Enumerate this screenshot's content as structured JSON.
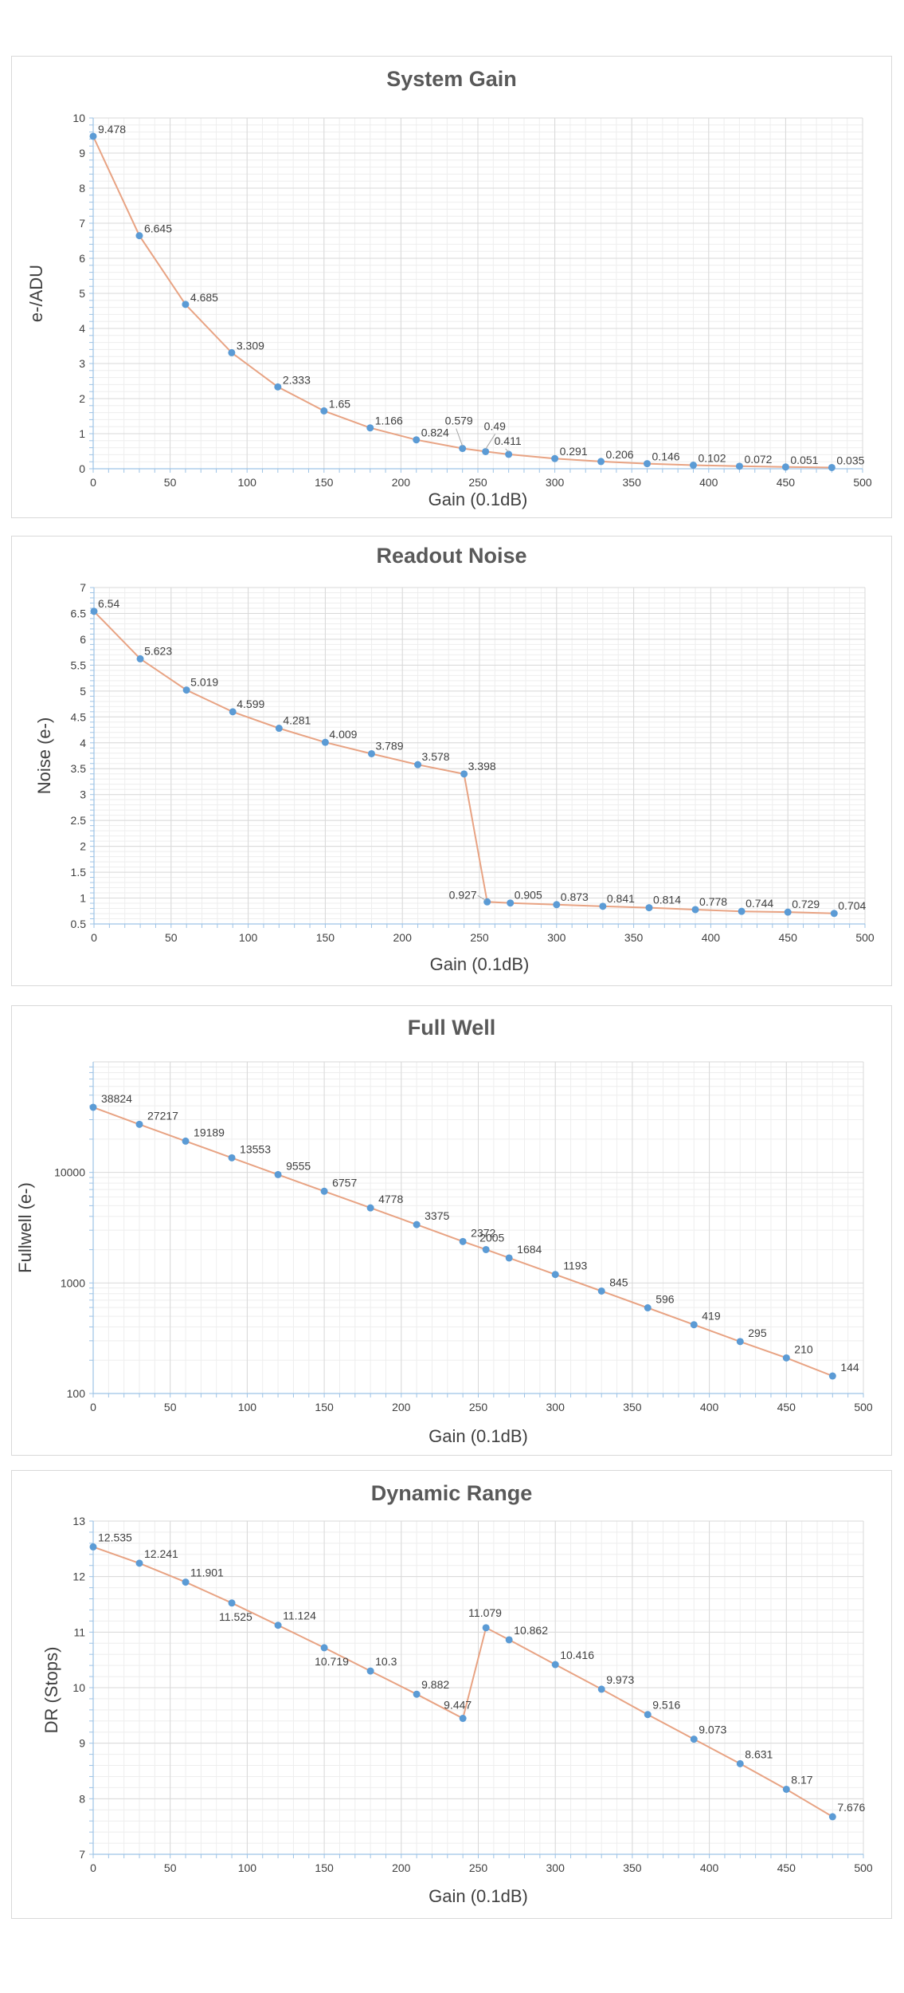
{
  "chart_data": [
    {
      "type": "line",
      "title": "System Gain",
      "xlabel": "Gain (0.1dB)",
      "ylabel": "e-/ADU",
      "xlim": [
        0,
        500
      ],
      "ylim": [
        0,
        10
      ],
      "yscale": "linear",
      "xticks": [
        0,
        50,
        100,
        150,
        200,
        250,
        300,
        350,
        400,
        450,
        500
      ],
      "yticks": [
        0,
        1,
        2,
        3,
        4,
        5,
        6,
        7,
        8,
        9,
        10
      ],
      "ytick_labels": [
        "0",
        "1",
        "2",
        "3",
        "4",
        "5",
        "6",
        "7",
        "8",
        "9",
        "10"
      ],
      "grid": true,
      "legend": "none",
      "series": [
        {
          "x": [
            0,
            30,
            60,
            90,
            120,
            150,
            180,
            210,
            240,
            255,
            270,
            300,
            330,
            360,
            390,
            420,
            450,
            480
          ],
          "y": [
            9.478,
            6.645,
            4.685,
            3.309,
            2.333,
            1.65,
            1.166,
            0.824,
            0.579,
            0.49,
            0.411,
            0.291,
            0.206,
            0.146,
            0.102,
            0.072,
            0.051,
            0.035
          ],
          "labels": [
            "9.478",
            "6.645",
            "4.685",
            "3.309",
            "2.333",
            "1.65",
            "1.166",
            "0.824",
            "0.579",
            "0.49",
            "0.411",
            "0.291",
            "0.206",
            "0.146",
            "0.102",
            "0.072",
            "0.051",
            "0.035"
          ]
        }
      ]
    },
    {
      "type": "line",
      "title": "Readout Noise",
      "xlabel": "Gain (0.1dB)",
      "ylabel": "Noise (e-)",
      "xlim": [
        0,
        500
      ],
      "ylim": [
        0.5,
        7
      ],
      "yscale": "linear",
      "xticks": [
        0,
        50,
        100,
        150,
        200,
        250,
        300,
        350,
        400,
        450,
        500
      ],
      "yticks": [
        0.5,
        1,
        1.5,
        2,
        2.5,
        3,
        3.5,
        4,
        4.5,
        5,
        5.5,
        6,
        6.5,
        7
      ],
      "ytick_labels": [
        "0.5",
        "1",
        "1.5",
        "2",
        "2.5",
        "3",
        "3.5",
        "4",
        "4.5",
        "5",
        "5.5",
        "6",
        "6.5",
        "7"
      ],
      "grid": true,
      "legend": "none",
      "series": [
        {
          "x": [
            0,
            30,
            60,
            90,
            120,
            150,
            180,
            210,
            240,
            255,
            270,
            300,
            330,
            360,
            390,
            420,
            450,
            480
          ],
          "y": [
            6.54,
            5.623,
            5.019,
            4.599,
            4.281,
            4.009,
            3.789,
            3.578,
            3.398,
            0.927,
            0.905,
            0.873,
            0.841,
            0.814,
            0.778,
            0.744,
            0.729,
            0.704
          ],
          "labels": [
            "6.54",
            "5.623",
            "5.019",
            "4.599",
            "4.281",
            "4.009",
            "3.789",
            "3.578",
            "3.398",
            "0.927",
            "0.905",
            "0.873",
            "0.841",
            "0.814",
            "0.778",
            "0.744",
            "0.729",
            "0.704"
          ]
        }
      ]
    },
    {
      "type": "line",
      "title": "Full Well",
      "xlabel": "Gain (0.1dB)",
      "ylabel": "Fullwell (e-)",
      "xlim": [
        0,
        500
      ],
      "ylim": [
        100,
        100000
      ],
      "yscale": "log",
      "xticks": [
        0,
        50,
        100,
        150,
        200,
        250,
        300,
        350,
        400,
        450,
        500
      ],
      "yticks": [
        100,
        1000,
        10000
      ],
      "ytick_labels": [
        "100",
        "1000",
        "10000"
      ],
      "grid": true,
      "legend": "none",
      "series": [
        {
          "x": [
            0,
            30,
            60,
            90,
            120,
            150,
            180,
            210,
            240,
            255,
            270,
            300,
            330,
            360,
            390,
            420,
            450,
            480
          ],
          "y": [
            38824,
            27217,
            19189,
            13553,
            9555,
            6757,
            4778,
            3375,
            2372,
            2005,
            1684,
            1193,
            845,
            596,
            419,
            295,
            210,
            144
          ],
          "labels": [
            "38824",
            "27217",
            "19189",
            "13553",
            "9555",
            "6757",
            "4778",
            "3375",
            "2372",
            "2005",
            "1684",
            "1193",
            "845",
            "596",
            "419",
            "295",
            "210",
            "144"
          ]
        }
      ]
    },
    {
      "type": "line",
      "title": "Dynamic Range",
      "xlabel": "Gain (0.1dB)",
      "ylabel": "DR (Stops)",
      "xlim": [
        0,
        500
      ],
      "ylim": [
        7,
        13
      ],
      "yscale": "linear",
      "xticks": [
        0,
        50,
        100,
        150,
        200,
        250,
        300,
        350,
        400,
        450,
        500
      ],
      "yticks": [
        7,
        8,
        9,
        10,
        11,
        12,
        13
      ],
      "ytick_labels": [
        "7",
        "8",
        "9",
        "10",
        "11",
        "12",
        "13"
      ],
      "grid": true,
      "legend": "none",
      "series": [
        {
          "x": [
            0,
            30,
            60,
            90,
            120,
            150,
            180,
            210,
            240,
            255,
            270,
            300,
            330,
            360,
            390,
            420,
            450,
            480
          ],
          "y": [
            12.535,
            12.241,
            11.901,
            11.525,
            11.124,
            10.719,
            10.3,
            9.882,
            9.447,
            11.079,
            10.862,
            10.416,
            9.973,
            9.516,
            9.073,
            8.631,
            8.17,
            7.676
          ],
          "labels": [
            "12.535",
            "12.241",
            "11.901",
            "11.525",
            "11.124",
            "10.719",
            "10.3",
            "9.882",
            "9.447",
            "11.079",
            "10.862",
            "10.416",
            "9.973",
            "9.516",
            "9.073",
            "8.631",
            "8.17",
            "7.676"
          ]
        }
      ]
    }
  ],
  "colors": {
    "line": "#e8a383",
    "marker": "#5b9bd5",
    "grid_major": "#d9d9d9",
    "grid_minor": "#eeeeee",
    "axis": "#9dc3e6",
    "title": "#595959",
    "text": "#404040"
  }
}
